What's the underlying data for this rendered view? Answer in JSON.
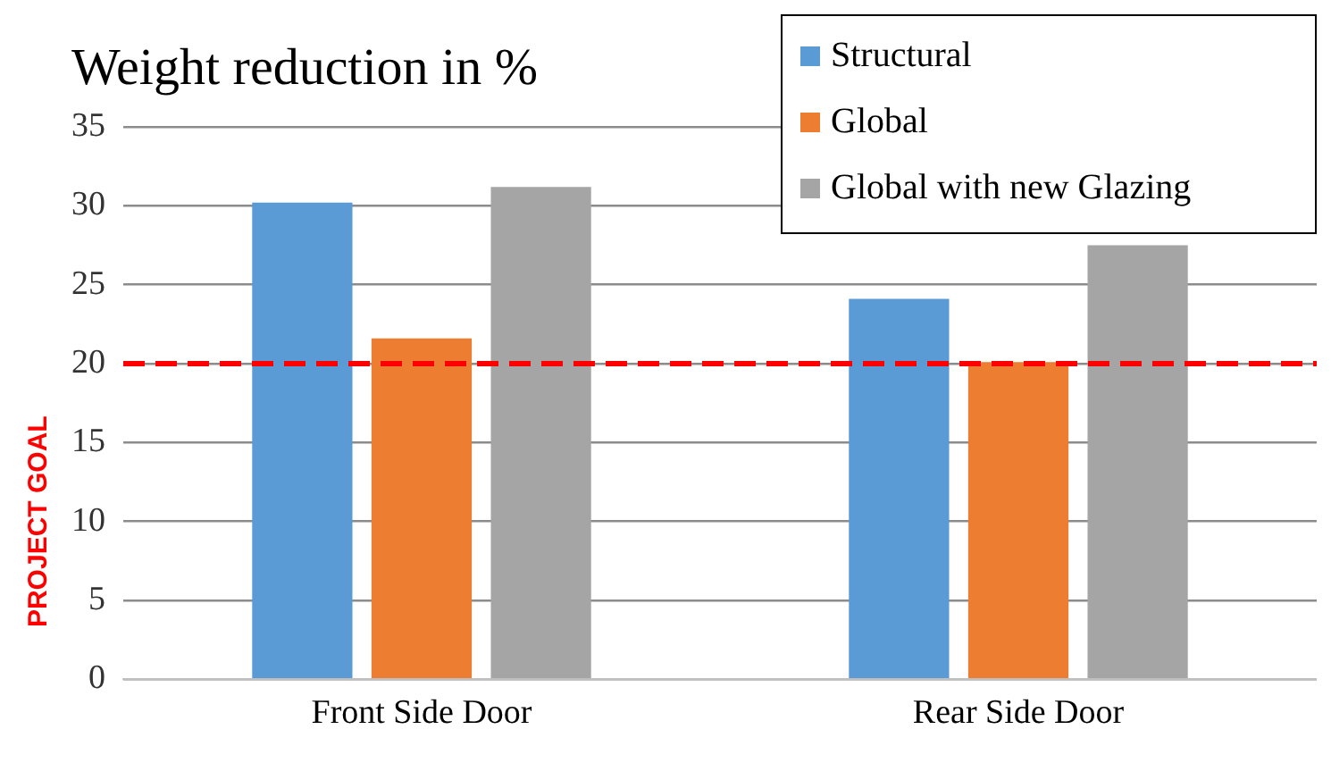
{
  "chart_data": {
    "type": "bar",
    "title": "Weight reduction in %",
    "categories": [
      "Front Side Door",
      "Rear Side Door"
    ],
    "series": [
      {
        "name": "Structural",
        "color": "#5b9bd5",
        "values": [
          30.2,
          24.1
        ]
      },
      {
        "name": "Global",
        "color": "#ed7d31",
        "values": [
          21.6,
          20.1
        ]
      },
      {
        "name": "Global with new Glazing",
        "color": "#a5a5a5",
        "values": [
          31.2,
          27.5
        ]
      }
    ],
    "ylim": [
      0,
      35
    ],
    "yticks": [
      0,
      5,
      10,
      15,
      20,
      25,
      30,
      35
    ],
    "grid": "y",
    "legend": "top right",
    "ref_lines": [
      {
        "axis": "y",
        "value": 20,
        "label": "PROJECT GOAL",
        "color": "#ff0000",
        "line_style": "dashed"
      }
    ]
  }
}
